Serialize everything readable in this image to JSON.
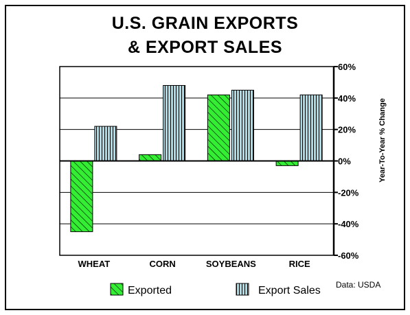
{
  "title_line1": "U.S. GRAIN EXPORTS",
  "title_line2": "& EXPORT SALES",
  "note": "Data: USDA",
  "colors": {
    "exported": "#33ee33",
    "export_sales": "#a8dde8"
  },
  "chart_data": {
    "type": "bar",
    "categories": [
      "WHEAT",
      "CORN",
      "SOYBEANS",
      "RICE"
    ],
    "series": [
      {
        "name": "Exported",
        "values": [
          -45,
          4,
          42,
          -3
        ]
      },
      {
        "name": "Export Sales",
        "values": [
          22,
          48,
          45,
          42
        ]
      }
    ],
    "ylabel": "Year-To-Year % Change",
    "ylim": [
      -60,
      60
    ],
    "yticks": [
      60,
      40,
      20,
      0,
      -20,
      -40,
      -60
    ],
    "ytick_labels": [
      "60%",
      "40%",
      "20%",
      "0%",
      "-20%",
      "-40%",
      "-60%"
    ],
    "y_axis_side": "right",
    "grid": true,
    "legend_position": "bottom"
  }
}
